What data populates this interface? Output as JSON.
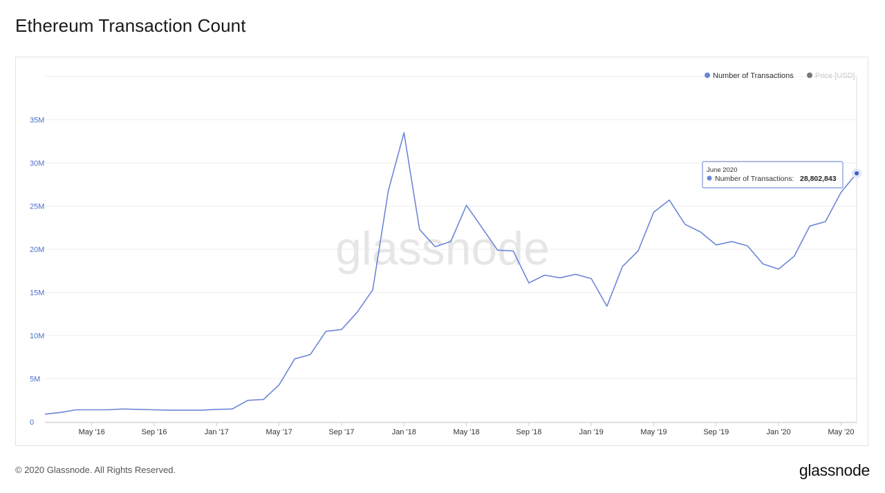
{
  "page": {
    "title": "Ethereum Transaction Count",
    "footer_copyright": "© 2020 Glassnode. All Rights Reserved.",
    "footer_logo": "glassnode",
    "watermark": "glassnode"
  },
  "colors": {
    "series_line": "#6b86d6",
    "price_dot": "#777777",
    "axis_text": "#4a6fc9",
    "x_axis_text": "#333333",
    "grid": "#eeeeee",
    "watermark": "#e6e6e6",
    "tooltip_border": "#7b93d8"
  },
  "legend": {
    "items": [
      {
        "label": "Number of Transactions",
        "color": "#6b86d6",
        "icon": "circle-dot-icon",
        "active": true
      },
      {
        "label": "Price [USD]",
        "color": "#777777",
        "icon": "circle-dot-icon",
        "active": false
      }
    ]
  },
  "tooltip": {
    "date": "June 2020",
    "label": "Number of Transactions:",
    "value": "28,802,843"
  },
  "chart_data": {
    "type": "line",
    "title": "Ethereum Transaction Count",
    "xlabel": "",
    "ylabel": "",
    "grid": true,
    "legend_position": "top-right",
    "ylim": [
      0,
      40000000
    ],
    "y_ticks": [
      {
        "value": 0,
        "label": "0"
      },
      {
        "value": 5000000,
        "label": "5M"
      },
      {
        "value": 10000000,
        "label": "10M"
      },
      {
        "value": 15000000,
        "label": "15M"
      },
      {
        "value": 20000000,
        "label": "20M"
      },
      {
        "value": 25000000,
        "label": "25M"
      },
      {
        "value": 30000000,
        "label": "30M"
      },
      {
        "value": 35000000,
        "label": "35M"
      }
    ],
    "x_ticks": [
      {
        "x": "2016-05",
        "label": "May '16"
      },
      {
        "x": "2016-09",
        "label": "Sep '16"
      },
      {
        "x": "2017-01",
        "label": "Jan '17"
      },
      {
        "x": "2017-05",
        "label": "May '17"
      },
      {
        "x": "2017-09",
        "label": "Sep '17"
      },
      {
        "x": "2018-01",
        "label": "Jan '18"
      },
      {
        "x": "2018-05",
        "label": "May '18"
      },
      {
        "x": "2018-09",
        "label": "Sep '18"
      },
      {
        "x": "2019-01",
        "label": "Jan '19"
      },
      {
        "x": "2019-05",
        "label": "May '19"
      },
      {
        "x": "2019-09",
        "label": "Sep '19"
      },
      {
        "x": "2020-01",
        "label": "Jan '20"
      },
      {
        "x": "2020-05",
        "label": "May '20"
      }
    ],
    "x": [
      "2016-02",
      "2016-03",
      "2016-04",
      "2016-05",
      "2016-06",
      "2016-07",
      "2016-08",
      "2016-09",
      "2016-10",
      "2016-11",
      "2016-12",
      "2017-01",
      "2017-02",
      "2017-03",
      "2017-04",
      "2017-05",
      "2017-06",
      "2017-07",
      "2017-08",
      "2017-09",
      "2017-10",
      "2017-11",
      "2017-12",
      "2018-01",
      "2018-02",
      "2018-03",
      "2018-04",
      "2018-05",
      "2018-06",
      "2018-07",
      "2018-08",
      "2018-09",
      "2018-10",
      "2018-11",
      "2018-12",
      "2019-01",
      "2019-02",
      "2019-03",
      "2019-04",
      "2019-05",
      "2019-06",
      "2019-07",
      "2019-08",
      "2019-09",
      "2019-10",
      "2019-11",
      "2019-12",
      "2020-01",
      "2020-02",
      "2020-03",
      "2020-04",
      "2020-05",
      "2020-06"
    ],
    "series": [
      {
        "name": "Number of Transactions",
        "color": "#6b86d6",
        "values": [
          900000,
          1100000,
          1400000,
          1400000,
          1400000,
          1500000,
          1450000,
          1400000,
          1350000,
          1350000,
          1350000,
          1450000,
          1500000,
          2500000,
          2600000,
          4300000,
          7300000,
          7800000,
          10500000,
          10700000,
          12700000,
          15300000,
          26800000,
          33500000,
          22300000,
          20300000,
          20900000,
          25100000,
          22500000,
          19900000,
          19800000,
          16100000,
          17000000,
          16700000,
          17100000,
          16600000,
          13400000,
          18000000,
          19800000,
          24300000,
          25700000,
          22900000,
          22000000,
          20500000,
          20900000,
          20400000,
          18300000,
          17700000,
          19200000,
          22700000,
          23200000,
          26600000,
          28802843
        ]
      }
    ]
  }
}
